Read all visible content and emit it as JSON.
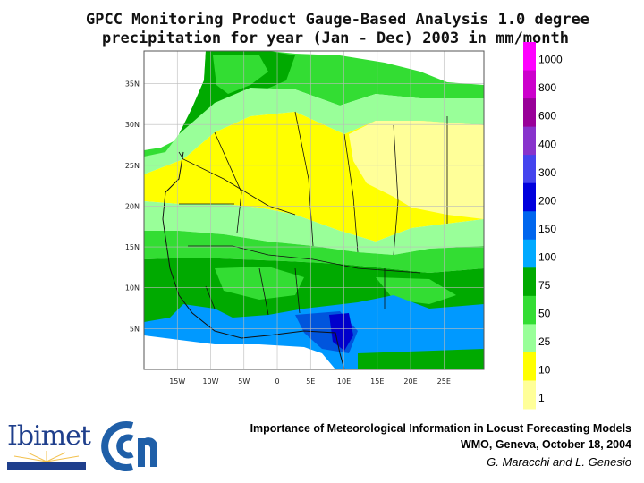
{
  "title": {
    "line1": "GPCC Monitoring Product Gauge-Based Analysis 1.0 degree",
    "line2": "precipitation for year (Jan - Dec) 2003 in mm/month"
  },
  "map": {
    "lon_range": [
      -20,
      31
    ],
    "lat_range": [
      0,
      39
    ],
    "lat_ticks": [
      "35N",
      "30N",
      "25N",
      "20N",
      "15N",
      "10N",
      "5N"
    ],
    "lon_ticks": [
      "15W",
      "10W",
      "5W",
      "0",
      "5E",
      "10E",
      "15E",
      "20E",
      "25E"
    ],
    "zone_colors": {
      "desert": "#ffff00",
      "dry": "#ffff99",
      "semi": "#99ff99",
      "moist": "#33dd33",
      "wet": "#00aa00",
      "veryWet": "#0099ff",
      "heavy": "#0055dd",
      "extreme": "#0000cc"
    }
  },
  "legend": {
    "levels": [
      {
        "label": "1000",
        "color": "#ff00ff"
      },
      {
        "label": "800",
        "color": "#cc00cc"
      },
      {
        "label": "600",
        "color": "#990099"
      },
      {
        "label": "400",
        "color": "#8833cc"
      },
      {
        "label": "300",
        "color": "#4444ee"
      },
      {
        "label": "200",
        "color": "#0000dd"
      },
      {
        "label": "150",
        "color": "#0066ee"
      },
      {
        "label": "100",
        "color": "#00aaff"
      },
      {
        "label": "75",
        "color": "#00aa00"
      },
      {
        "label": "50",
        "color": "#33dd33"
      },
      {
        "label": "25",
        "color": "#99ff99"
      },
      {
        "label": "10",
        "color": "#ffff00"
      },
      {
        "label": "1",
        "color": "#ffff99"
      }
    ]
  },
  "footer": {
    "line1": "Importance of Meteorological Information in Locust Forecasting Models",
    "line2": "WMO, Geneva, October 18, 2004",
    "line3": "G. Maracchi and L. Genesio"
  },
  "logos": {
    "ibimet": "Ibimet",
    "cnr": "cnr-logo"
  }
}
